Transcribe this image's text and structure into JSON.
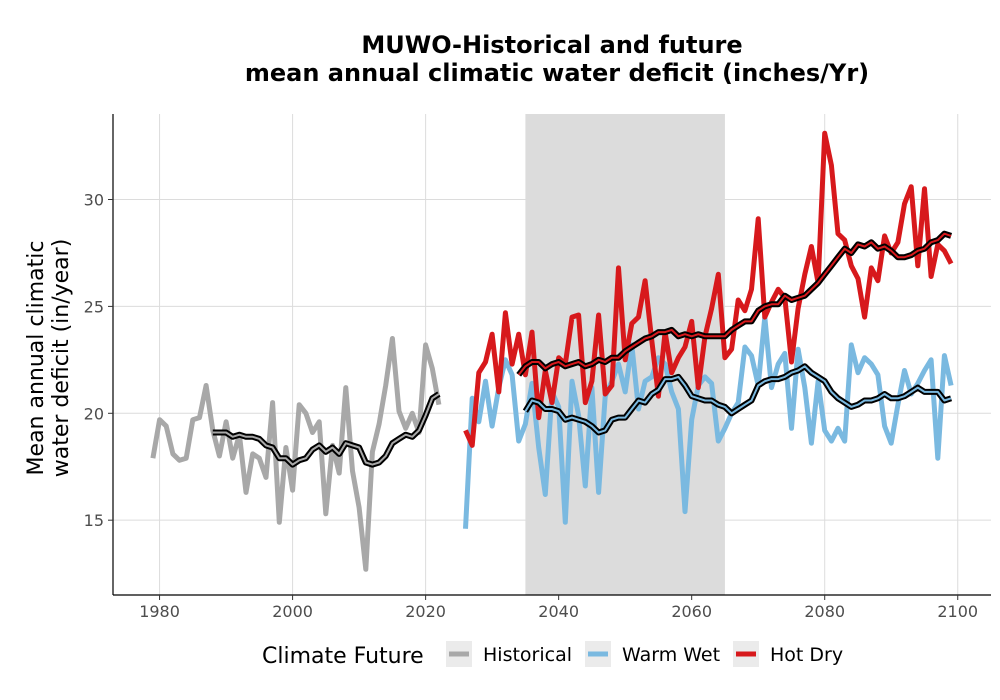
{
  "chart_data": {
    "type": "line",
    "title": "MUWO-Historical and future\nmean annual climatic water deficit (inches/Yr)",
    "ylabel": "Mean annual climatic\nwater deficit (in/year)",
    "xlabel": "",
    "xlim": [
      1973,
      2105
    ],
    "ylim": [
      11.5,
      34
    ],
    "x_ticks": [
      1980,
      2000,
      2020,
      2040,
      2060,
      2080,
      2100
    ],
    "y_ticks": [
      15,
      20,
      25,
      30
    ],
    "grid": true,
    "shaded_period": [
      2035,
      2065
    ],
    "legend": {
      "title": "Climate Future",
      "position": "bottom",
      "entries": [
        "Historical",
        "Warm Wet",
        "Hot Dry"
      ]
    },
    "colors": {
      "Historical": "#a8a8a8",
      "Warm Wet": "#7ab9e0",
      "Hot Dry": "#d7191c",
      "moving_average": "#000000",
      "shade": "#dcdcdc"
    },
    "series": [
      {
        "name": "Historical",
        "x": [
          1979,
          1980,
          1981,
          1982,
          1983,
          1984,
          1985,
          1986,
          1987,
          1988,
          1989,
          1990,
          1991,
          1992,
          1993,
          1994,
          1995,
          1996,
          1997,
          1998,
          1999,
          2000,
          2001,
          2002,
          2003,
          2004,
          2005,
          2006,
          2007,
          2008,
          2009,
          2010,
          2011,
          2012,
          2013,
          2014,
          2015,
          2016,
          2017,
          2018,
          2019,
          2020,
          2021,
          2022
        ],
        "values": [
          17.9,
          19.7,
          19.4,
          18.1,
          17.8,
          17.9,
          19.7,
          19.8,
          21.3,
          19.2,
          18.0,
          19.6,
          17.9,
          19.0,
          16.3,
          18.1,
          17.9,
          17.0,
          20.5,
          14.9,
          18.4,
          16.4,
          20.4,
          20.0,
          19.1,
          19.6,
          15.3,
          18.5,
          17.2,
          21.2,
          17.3,
          15.6,
          12.7,
          18.2,
          19.5,
          21.3,
          23.5,
          20.1,
          19.3,
          20.0,
          19.1,
          23.2,
          22.1,
          20.4
        ]
      },
      {
        "name": "Warm Wet",
        "x": [
          2026,
          2027,
          2028,
          2029,
          2030,
          2031,
          2032,
          2033,
          2034,
          2035,
          2036,
          2037,
          2038,
          2039,
          2040,
          2041,
          2042,
          2043,
          2044,
          2045,
          2046,
          2047,
          2048,
          2049,
          2050,
          2051,
          2052,
          2053,
          2054,
          2055,
          2056,
          2057,
          2058,
          2059,
          2060,
          2061,
          2062,
          2063,
          2064,
          2065,
          2066,
          2067,
          2068,
          2069,
          2070,
          2071,
          2072,
          2073,
          2074,
          2075,
          2076,
          2077,
          2078,
          2079,
          2080,
          2081,
          2082,
          2083,
          2084,
          2085,
          2086,
          2087,
          2088,
          2089,
          2090,
          2091,
          2092,
          2093,
          2094,
          2095,
          2096,
          2097,
          2098,
          2099
        ],
        "values": [
          14.6,
          20.7,
          19.6,
          21.5,
          19.4,
          21.2,
          22.5,
          21.8,
          18.7,
          19.5,
          21.4,
          18.4,
          16.2,
          21.0,
          20.3,
          14.9,
          21.5,
          19.9,
          16.6,
          21.2,
          16.3,
          20.8,
          21.5,
          22.3,
          21.0,
          23.2,
          20.2,
          21.5,
          21.7,
          22.6,
          22.3,
          21.0,
          20.2,
          15.4,
          19.7,
          21.3,
          21.7,
          21.4,
          18.7,
          19.3,
          20.0,
          20.5,
          23.1,
          22.7,
          21.3,
          24.5,
          21.2,
          22.3,
          22.8,
          19.3,
          23.0,
          21.2,
          18.6,
          21.5,
          19.2,
          18.7,
          19.3,
          18.7,
          23.2,
          21.9,
          22.6,
          22.3,
          21.8,
          19.4,
          18.6,
          20.4,
          22.0,
          20.9,
          21.4,
          22.0,
          22.5,
          17.9,
          22.7,
          21.3
        ]
      },
      {
        "name": "Hot Dry",
        "x": [
          2026,
          2027,
          2028,
          2029,
          2030,
          2031,
          2032,
          2033,
          2034,
          2035,
          2036,
          2037,
          2038,
          2039,
          2040,
          2041,
          2042,
          2043,
          2044,
          2045,
          2046,
          2047,
          2048,
          2049,
          2050,
          2051,
          2052,
          2053,
          2054,
          2055,
          2056,
          2057,
          2058,
          2059,
          2060,
          2061,
          2062,
          2063,
          2064,
          2065,
          2066,
          2067,
          2068,
          2069,
          2070,
          2071,
          2072,
          2073,
          2074,
          2075,
          2076,
          2077,
          2078,
          2079,
          2080,
          2081,
          2082,
          2083,
          2084,
          2085,
          2086,
          2087,
          2088,
          2089,
          2090,
          2091,
          2092,
          2093,
          2094,
          2095,
          2096,
          2097,
          2098,
          2099
        ],
        "values": [
          19.2,
          18.5,
          21.9,
          22.4,
          23.7,
          21.0,
          24.7,
          22.3,
          23.7,
          21.8,
          23.8,
          19.8,
          22.0,
          20.5,
          22.6,
          22.3,
          24.5,
          24.6,
          20.5,
          21.5,
          24.6,
          20.9,
          21.3,
          26.8,
          22.5,
          24.2,
          24.5,
          26.2,
          23.4,
          20.8,
          23.8,
          21.9,
          22.6,
          23.1,
          24.3,
          21.2,
          23.6,
          24.9,
          26.5,
          22.6,
          23.0,
          25.3,
          24.8,
          25.8,
          29.1,
          24.5,
          25.2,
          25.8,
          25.4,
          22.4,
          24.9,
          26.5,
          27.8,
          26.1,
          33.1,
          31.6,
          28.4,
          28.1,
          26.9,
          26.3,
          24.5,
          26.8,
          26.2,
          28.3,
          27.5,
          28.0,
          29.8,
          30.6,
          26.9,
          30.5,
          26.4,
          27.9,
          27.6,
          27.0
        ]
      },
      {
        "name": "",
        "role": "moving-average",
        "x": [
          1988,
          1989,
          1990,
          1991,
          1992,
          1993,
          1994,
          1995,
          1996,
          1997,
          1998,
          1999,
          2000,
          2001,
          2002,
          2003,
          2004,
          2005,
          2006,
          2007,
          2008,
          2009,
          2010,
          2011,
          2012,
          2013,
          2014,
          2015,
          2016,
          2017,
          2018,
          2019,
          2020,
          2021,
          2022
        ],
        "values": [
          19.1,
          19.1,
          19.1,
          18.9,
          19.0,
          18.9,
          18.9,
          18.8,
          18.5,
          18.4,
          17.9,
          17.9,
          17.6,
          17.8,
          17.9,
          18.3,
          18.5,
          18.2,
          18.4,
          18.1,
          18.6,
          18.5,
          18.4,
          17.7,
          17.6,
          17.7,
          18.0,
          18.6,
          18.8,
          19.0,
          18.9,
          19.2,
          19.9,
          20.7,
          20.9
        ]
      },
      {
        "name": "",
        "role": "moving-average",
        "x": [
          2035,
          2036,
          2037,
          2038,
          2039,
          2040,
          2041,
          2042,
          2043,
          2044,
          2045,
          2046,
          2047,
          2048,
          2049,
          2050,
          2051,
          2052,
          2053,
          2054,
          2055,
          2056,
          2057,
          2058,
          2059,
          2060,
          2061,
          2062,
          2063,
          2064,
          2065,
          2066,
          2067,
          2068,
          2069,
          2070,
          2071,
          2072,
          2073,
          2074,
          2075,
          2076,
          2077,
          2078,
          2079,
          2080,
          2081,
          2082,
          2083,
          2084,
          2085,
          2086,
          2087,
          2088,
          2089,
          2090,
          2091,
          2092,
          2093,
          2094,
          2095,
          2096,
          2097,
          2098,
          2099
        ],
        "values": [
          20.1,
          20.6,
          20.5,
          20.2,
          20.2,
          20.1,
          19.7,
          19.8,
          19.7,
          19.6,
          19.4,
          19.1,
          19.2,
          19.7,
          19.8,
          19.8,
          20.2,
          20.6,
          20.5,
          20.9,
          21.1,
          21.6,
          21.6,
          21.7,
          21.3,
          20.8,
          20.7,
          20.6,
          20.6,
          20.4,
          20.3,
          20.0,
          20.2,
          20.4,
          20.6,
          21.3,
          21.5,
          21.6,
          21.6,
          21.7,
          21.9,
          22.0,
          22.2,
          21.9,
          21.7,
          21.5,
          21.0,
          20.7,
          20.5,
          20.3,
          20.4,
          20.6,
          20.6,
          20.7,
          20.9,
          20.7,
          20.7,
          20.8,
          21.0,
          21.2,
          21.0,
          21.0,
          21.0,
          20.6,
          20.7
        ]
      },
      {
        "name": "",
        "role": "moving-average",
        "x": [
          2034,
          2035,
          2036,
          2037,
          2038,
          2039,
          2040,
          2041,
          2042,
          2043,
          2044,
          2045,
          2046,
          2047,
          2048,
          2049,
          2050,
          2051,
          2052,
          2053,
          2054,
          2055,
          2056,
          2057,
          2058,
          2059,
          2060,
          2061,
          2062,
          2063,
          2064,
          2065,
          2066,
          2067,
          2068,
          2069,
          2070,
          2071,
          2072,
          2073,
          2074,
          2075,
          2076,
          2077,
          2078,
          2079,
          2080,
          2081,
          2082,
          2083,
          2084,
          2085,
          2086,
          2087,
          2088,
          2089,
          2090,
          2091,
          2092,
          2093,
          2094,
          2095,
          2096,
          2097,
          2098,
          2099
        ],
        "values": [
          21.8,
          22.2,
          22.4,
          22.4,
          22.1,
          22.3,
          22.4,
          22.2,
          22.3,
          22.4,
          22.2,
          22.3,
          22.5,
          22.4,
          22.6,
          22.6,
          22.9,
          23.1,
          23.3,
          23.5,
          23.6,
          23.8,
          23.8,
          23.9,
          23.6,
          23.7,
          23.6,
          23.7,
          23.6,
          23.6,
          23.6,
          23.6,
          23.9,
          24.1,
          24.3,
          24.3,
          24.8,
          25.0,
          25.1,
          25.1,
          25.5,
          25.3,
          25.4,
          25.5,
          25.8,
          26.1,
          26.5,
          26.9,
          27.3,
          27.7,
          27.5,
          27.9,
          27.8,
          28.0,
          27.7,
          27.8,
          27.6,
          27.3,
          27.3,
          27.4,
          27.6,
          27.7,
          28.0,
          28.1,
          28.4,
          28.3
        ]
      }
    ]
  }
}
